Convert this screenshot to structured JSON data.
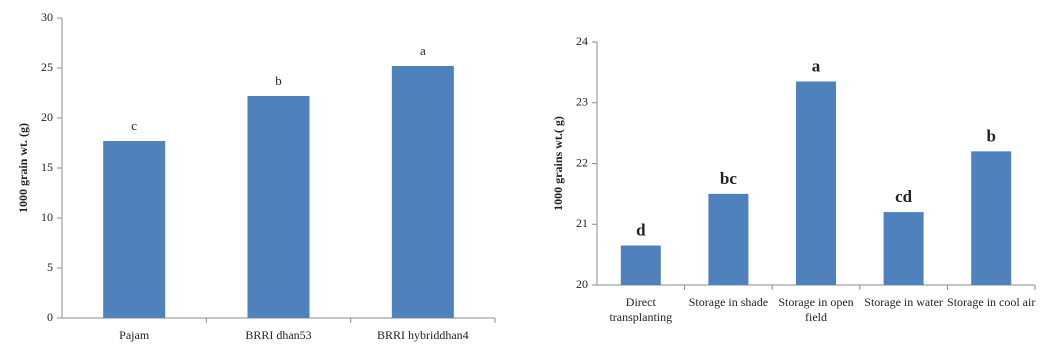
{
  "chart_data": [
    {
      "type": "bar",
      "ylabel": "1000 grain wt. (g)",
      "categories": [
        "Pajam",
        "BRRI dhan53",
        "BRRI hybriddhan4"
      ],
      "values": [
        17.7,
        22.2,
        25.2
      ],
      "annotations": [
        "c",
        "b",
        "a"
      ],
      "color": "#4f81bd",
      "ylim": [
        0,
        30
      ],
      "yticks": [
        0,
        5,
        10,
        15,
        20,
        25,
        30
      ]
    },
    {
      "type": "bar",
      "ylabel": "1000 grains wt.( g)",
      "categories": [
        "Direct transplanting",
        "Storage in shade",
        "Storage in open field",
        "Storage in water",
        "Storage in cool air"
      ],
      "values": [
        20.65,
        21.5,
        23.35,
        21.2,
        22.2
      ],
      "annotations": [
        "d",
        "bc",
        "a",
        "cd",
        "b"
      ],
      "color": "#4f81bd",
      "ylim": [
        20,
        24
      ],
      "yticks": [
        20,
        21,
        22,
        23,
        24
      ]
    }
  ]
}
